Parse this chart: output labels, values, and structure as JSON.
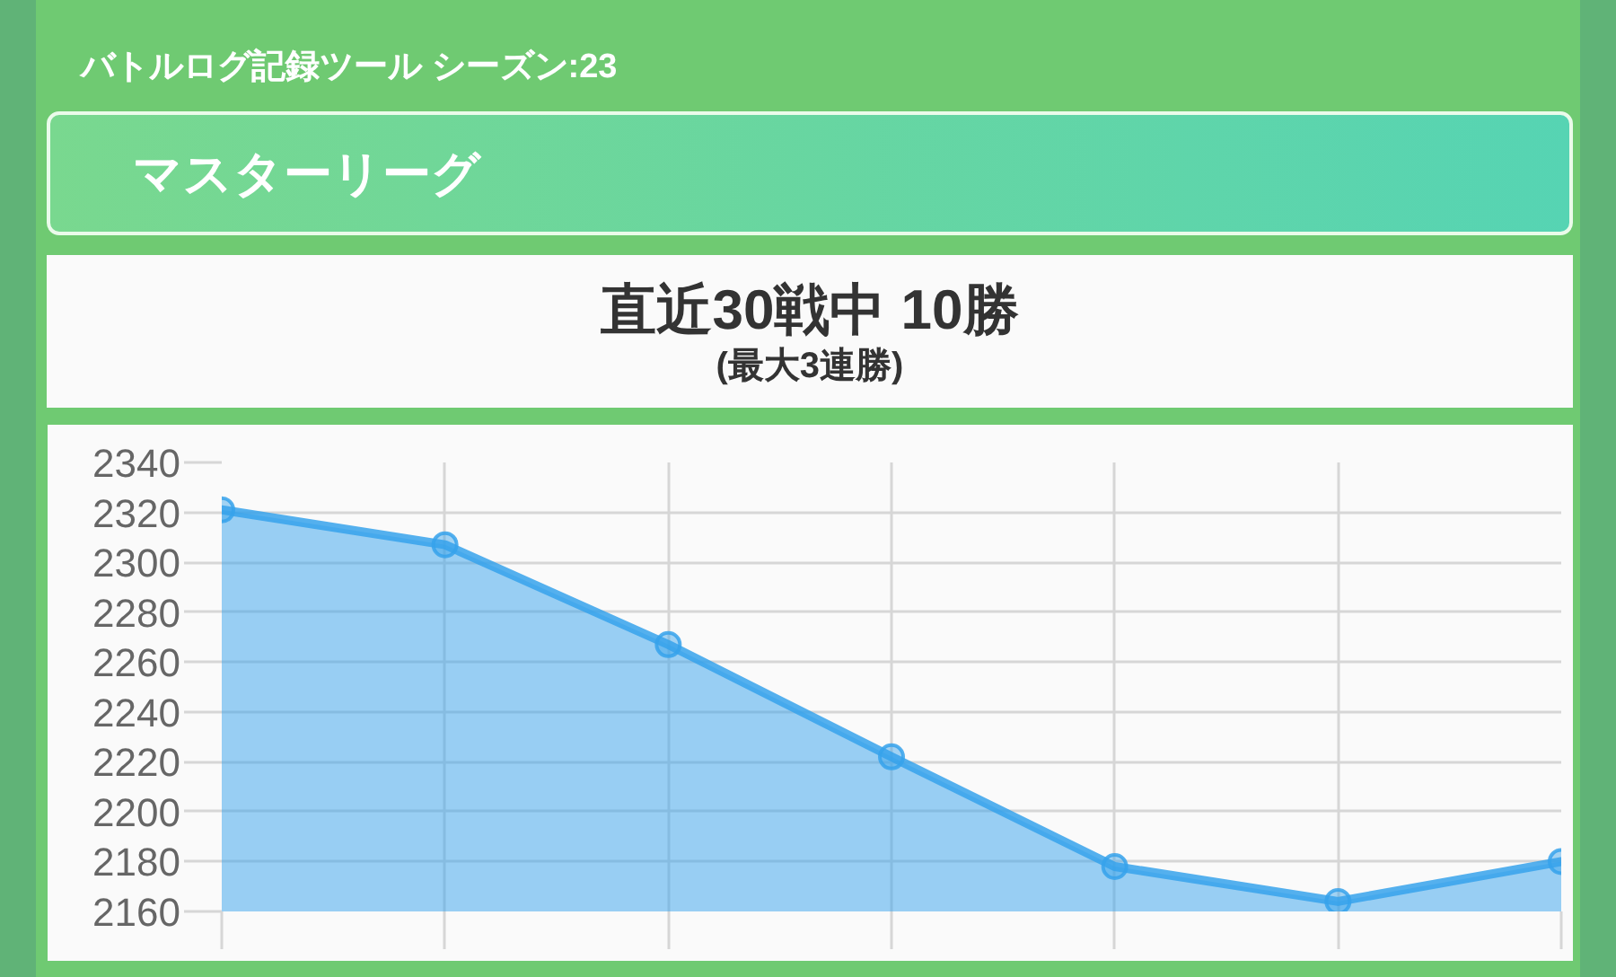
{
  "chart_data": {
    "type": "area",
    "title": "バトルログ記録ツール シーズン:23",
    "subtitle": "マスターリーグ",
    "annotations": [
      "直近30戦中 10勝",
      "(最大3連勝)"
    ],
    "categories": [
      null,
      null,
      null,
      null,
      null,
      null,
      null
    ],
    "series": [
      {
        "color": "#36a2eb",
        "values": [
          2321,
          2307,
          2267,
          2222,
          2178,
          2164,
          2180
        ]
      }
    ],
    "ylim": [
      2160,
      2340
    ],
    "yticks": [
      2160,
      2180,
      2200,
      2220,
      2240,
      2260,
      2280,
      2300,
      2320,
      2340
    ],
    "grid": true,
    "marker": "circle",
    "tick_labels": "y"
  }
}
